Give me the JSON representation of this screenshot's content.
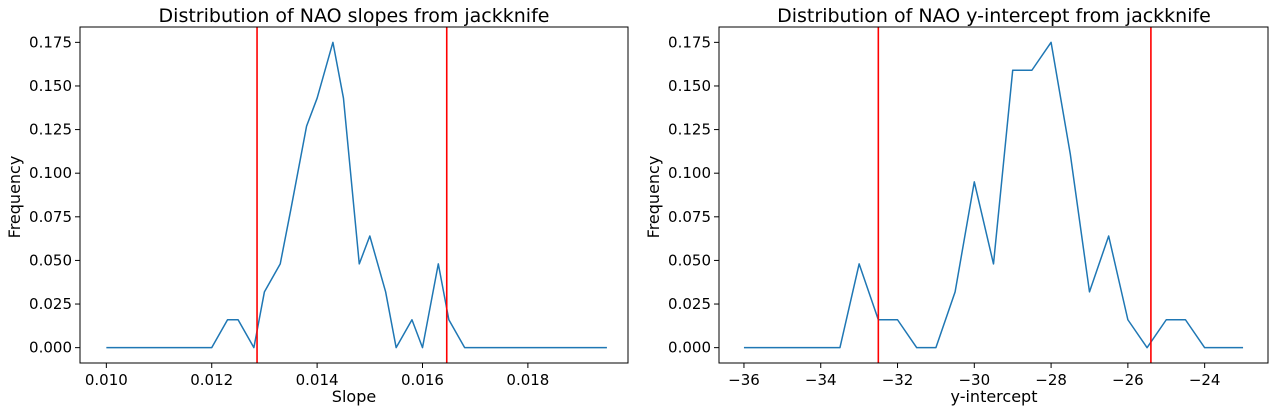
{
  "chart_data": [
    {
      "type": "line",
      "title": "Distribution of NAO slopes from jackknife",
      "xlabel": "Slope",
      "ylabel": "Frequency",
      "xlim": [
        0.0095,
        0.0199
      ],
      "ylim": [
        -0.0088,
        0.1838
      ],
      "xticks": [
        0.01,
        0.012,
        0.014,
        0.016,
        0.018
      ],
      "xtick_labels": [
        "0.010",
        "0.012",
        "0.014",
        "0.016",
        "0.018"
      ],
      "yticks": [
        0.0,
        0.025,
        0.05,
        0.075,
        0.1,
        0.125,
        0.15,
        0.175
      ],
      "ytick_labels": [
        "0.000",
        "0.025",
        "0.050",
        "0.075",
        "0.100",
        "0.125",
        "0.150",
        "0.175"
      ],
      "grid": false,
      "series": [
        {
          "color": "#1f77b4",
          "x": [
            0.01,
            0.0103,
            0.0105,
            0.0108,
            0.011,
            0.0113,
            0.0115,
            0.0118,
            0.012,
            0.0123,
            0.0125,
            0.0128,
            0.013,
            0.0133,
            0.0135,
            0.0138,
            0.014,
            0.0143,
            0.0145,
            0.0148,
            0.015,
            0.0153,
            0.0155,
            0.0158,
            0.016,
            0.0163,
            0.0165,
            0.0168,
            0.017,
            0.0173,
            0.0175,
            0.0178,
            0.018,
            0.0183,
            0.0185,
            0.0188,
            0.019,
            0.0193,
            0.0195
          ],
          "y": [
            0,
            0,
            0,
            0,
            0,
            0,
            0,
            0,
            0,
            0.016,
            0.016,
            0,
            0.032,
            0.048,
            0.079,
            0.127,
            0.143,
            0.175,
            0.143,
            0.048,
            0.064,
            0.032,
            0,
            0.016,
            0,
            0.048,
            0.016,
            0,
            0,
            0,
            0,
            0,
            0,
            0,
            0,
            0,
            0,
            0,
            0
          ]
        }
      ],
      "vlines": {
        "color": "#ff0000",
        "x": [
          0.01286,
          0.01646
        ]
      }
    },
    {
      "type": "line",
      "title": "Distribution of NAO y-intercept from jackknife",
      "xlabel": "y-intercept",
      "ylabel": "Frequency",
      "xlim": [
        -36.65,
        -22.35
      ],
      "ylim": [
        -0.0088,
        0.1838
      ],
      "xticks": [
        -36,
        -34,
        -32,
        -30,
        -28,
        -26,
        -24
      ],
      "xtick_labels": [
        "−36",
        "−34",
        "−32",
        "−30",
        "−28",
        "−26",
        "−24"
      ],
      "yticks": [
        0.0,
        0.025,
        0.05,
        0.075,
        0.1,
        0.125,
        0.15,
        0.175
      ],
      "ytick_labels": [
        "0.000",
        "0.025",
        "0.050",
        "0.075",
        "0.100",
        "0.125",
        "0.150",
        "0.175"
      ],
      "grid": false,
      "series": [
        {
          "color": "#1f77b4",
          "x": [
            -36,
            -35.5,
            -35,
            -34.5,
            -34,
            -33.5,
            -33,
            -32.5,
            -32,
            -31.5,
            -31,
            -30.5,
            -30,
            -29.5,
            -29,
            -28.5,
            -28,
            -27.5,
            -27,
            -26.5,
            -26,
            -25.5,
            -25,
            -24.5,
            -24,
            -23.5,
            -23
          ],
          "y": [
            0,
            0,
            0,
            0,
            0,
            0,
            0.048,
            0.016,
            0.016,
            0,
            0,
            0.032,
            0.095,
            0.048,
            0.159,
            0.159,
            0.175,
            0.111,
            0.032,
            0.064,
            0.016,
            0,
            0.016,
            0.016,
            0,
            0,
            0
          ]
        }
      ],
      "vlines": {
        "color": "#ff0000",
        "x": [
          -32.5,
          -25.4
        ]
      }
    }
  ]
}
